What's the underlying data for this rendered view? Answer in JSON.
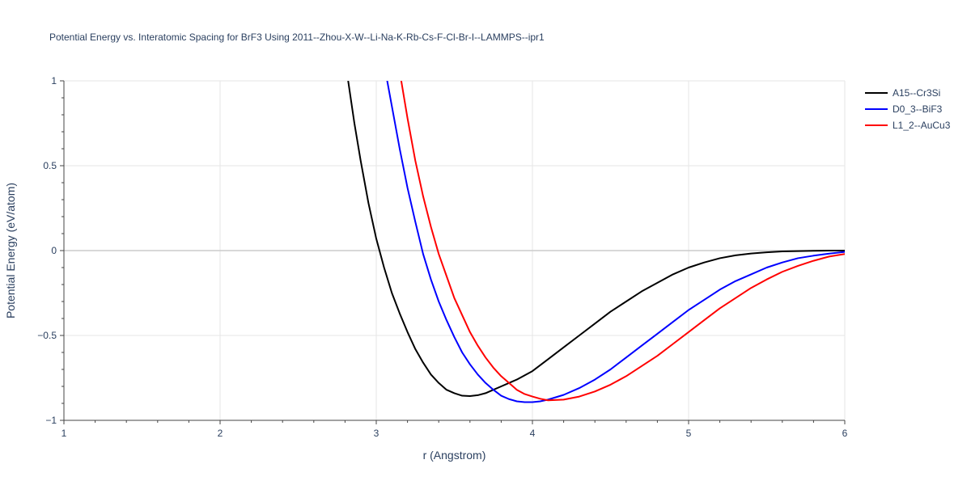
{
  "chart_data": {
    "type": "line",
    "title": "Potential Energy vs. Interatomic Spacing for BrF3 Using 2011--Zhou-X-W--Li-Na-K-Rb-Cs-F-Cl-Br-I--LAMMPS--ipr1",
    "xlabel": "r (Angstrom)",
    "ylabel": "Potential Energy (eV/atom)",
    "xlim": [
      1,
      6
    ],
    "ylim": [
      -1,
      1
    ],
    "xticks": [
      1,
      2,
      3,
      4,
      5,
      6
    ],
    "xtick_labels": [
      "1",
      "2",
      "3",
      "4",
      "5",
      "6"
    ],
    "yticks": [
      -1,
      -0.5,
      0,
      0.5,
      1
    ],
    "ytick_labels": [
      "−1",
      "−0.5",
      "0",
      "0.5",
      "1"
    ],
    "grid": true,
    "legend_position": "top-right",
    "series": [
      {
        "name": "A15--Cr3Si",
        "color": "#000000",
        "x": [
          2.82,
          2.86,
          2.9,
          2.95,
          3.0,
          3.05,
          3.1,
          3.15,
          3.2,
          3.25,
          3.3,
          3.35,
          3.4,
          3.45,
          3.5,
          3.55,
          3.6,
          3.65,
          3.7,
          3.75,
          3.8,
          3.9,
          4.0,
          4.1,
          4.2,
          4.3,
          4.4,
          4.5,
          4.6,
          4.7,
          4.8,
          4.9,
          5.0,
          5.1,
          5.2,
          5.3,
          5.4,
          5.5,
          5.6,
          5.7,
          5.8,
          5.9,
          6.0
        ],
        "y": [
          1.0,
          0.75,
          0.53,
          0.28,
          0.07,
          -0.1,
          -0.25,
          -0.37,
          -0.48,
          -0.58,
          -0.66,
          -0.73,
          -0.78,
          -0.82,
          -0.84,
          -0.855,
          -0.857,
          -0.852,
          -0.84,
          -0.82,
          -0.8,
          -0.76,
          -0.71,
          -0.64,
          -0.57,
          -0.5,
          -0.43,
          -0.36,
          -0.3,
          -0.24,
          -0.19,
          -0.14,
          -0.1,
          -0.07,
          -0.045,
          -0.028,
          -0.017,
          -0.01,
          -0.005,
          -0.003,
          -0.001,
          0.0,
          0.0
        ]
      },
      {
        "name": "D0_3--BiF3",
        "color": "#0000ff",
        "x": [
          3.07,
          3.1,
          3.15,
          3.2,
          3.25,
          3.3,
          3.35,
          3.4,
          3.45,
          3.5,
          3.55,
          3.6,
          3.65,
          3.7,
          3.75,
          3.8,
          3.85,
          3.9,
          3.95,
          4.0,
          4.05,
          4.1,
          4.2,
          4.3,
          4.4,
          4.5,
          4.6,
          4.7,
          4.8,
          4.9,
          5.0,
          5.1,
          5.2,
          5.3,
          5.4,
          5.5,
          5.6,
          5.7,
          5.8,
          5.9,
          6.0
        ],
        "y": [
          1.0,
          0.85,
          0.6,
          0.37,
          0.17,
          -0.02,
          -0.17,
          -0.3,
          -0.41,
          -0.51,
          -0.6,
          -0.67,
          -0.73,
          -0.78,
          -0.82,
          -0.855,
          -0.875,
          -0.888,
          -0.893,
          -0.893,
          -0.888,
          -0.878,
          -0.85,
          -0.81,
          -0.76,
          -0.7,
          -0.63,
          -0.56,
          -0.49,
          -0.42,
          -0.35,
          -0.29,
          -0.23,
          -0.18,
          -0.14,
          -0.1,
          -0.07,
          -0.045,
          -0.03,
          -0.018,
          -0.008
        ]
      },
      {
        "name": "L1_2--AuCu3",
        "color": "#ff0000",
        "x": [
          3.16,
          3.2,
          3.25,
          3.3,
          3.35,
          3.4,
          3.45,
          3.5,
          3.55,
          3.6,
          3.65,
          3.7,
          3.75,
          3.8,
          3.85,
          3.9,
          3.95,
          4.0,
          4.05,
          4.1,
          4.2,
          4.3,
          4.4,
          4.5,
          4.6,
          4.7,
          4.8,
          4.9,
          5.0,
          5.1,
          5.2,
          5.3,
          5.4,
          5.5,
          5.6,
          5.7,
          5.8,
          5.9,
          6.0
        ],
        "y": [
          1.0,
          0.78,
          0.53,
          0.32,
          0.14,
          -0.02,
          -0.15,
          -0.28,
          -0.38,
          -0.48,
          -0.56,
          -0.63,
          -0.69,
          -0.74,
          -0.78,
          -0.82,
          -0.845,
          -0.86,
          -0.873,
          -0.882,
          -0.878,
          -0.86,
          -0.83,
          -0.79,
          -0.74,
          -0.68,
          -0.62,
          -0.55,
          -0.48,
          -0.41,
          -0.34,
          -0.28,
          -0.22,
          -0.17,
          -0.125,
          -0.09,
          -0.06,
          -0.035,
          -0.02
        ]
      }
    ]
  }
}
